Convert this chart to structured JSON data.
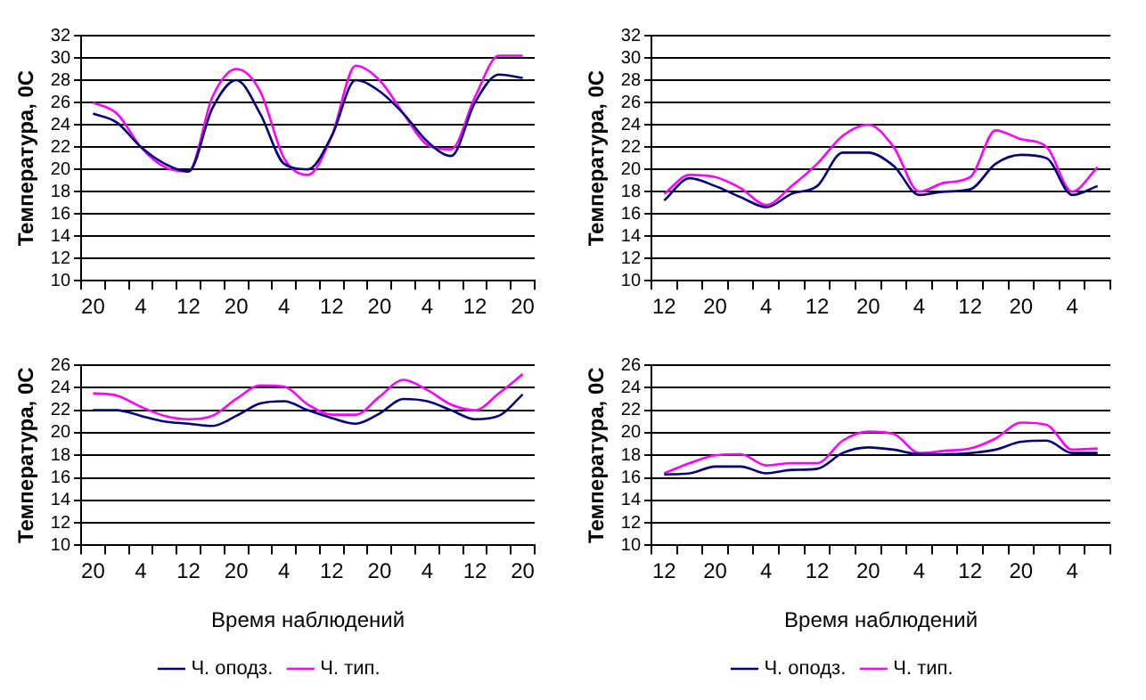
{
  "chart_data": [
    {
      "type": "line",
      "categories": [
        "20",
        null,
        "4",
        null,
        "12",
        null,
        "20",
        null,
        "4",
        null,
        "12",
        null,
        "20",
        null,
        "4",
        null,
        "12",
        null,
        "20"
      ],
      "ylabel": "Температура, 0С",
      "ylim": [
        10,
        32
      ],
      "yticks": [
        10,
        12,
        14,
        16,
        18,
        20,
        22,
        24,
        26,
        28,
        30,
        32
      ],
      "grid": "y",
      "legend": false,
      "marker": "none",
      "series": [
        {
          "color": "#000080",
          "values": [
            25,
            24.2,
            22,
            20.5,
            19.8,
            25.5,
            28,
            25,
            20.5,
            20,
            23,
            28,
            27,
            25,
            22.5,
            21.2,
            26,
            28.5,
            28.2
          ]
        },
        {
          "color": "#ff00ff",
          "values": [
            26,
            25,
            22,
            20.2,
            19.8,
            26.5,
            29,
            27,
            21,
            19.5,
            23,
            29.3,
            28,
            25,
            22.2,
            21.8,
            26.5,
            30.2,
            30.2
          ]
        }
      ]
    },
    {
      "type": "line",
      "categories": [
        "12",
        null,
        "20",
        null,
        "4",
        null,
        "12",
        null,
        "20",
        null,
        "4",
        null,
        "12",
        null,
        "20",
        null,
        "4",
        null
      ],
      "ylabel": "Температура, 0С",
      "ylim": [
        10,
        32
      ],
      "yticks": [
        10,
        12,
        14,
        16,
        18,
        20,
        22,
        24,
        26,
        28,
        30,
        32
      ],
      "grid": "y",
      "legend": false,
      "marker": "none",
      "series": [
        {
          "color": "#000080",
          "values": [
            17.2,
            19.2,
            18.5,
            17.5,
            16.6,
            17.8,
            18.5,
            21.5,
            21.5,
            20.3,
            17.7,
            18,
            18.2,
            20.5,
            21.3,
            21,
            17.7,
            18.5
          ]
        },
        {
          "color": "#ff00ff",
          "values": [
            17.8,
            19.5,
            19.3,
            18.3,
            16.8,
            18.5,
            20.5,
            23,
            24,
            22,
            18,
            18.8,
            19.3,
            23.5,
            22.7,
            22,
            18,
            20.2
          ]
        }
      ]
    },
    {
      "type": "line",
      "categories": [
        "20",
        null,
        "4",
        null,
        "12",
        null,
        "20",
        null,
        "4",
        null,
        "12",
        null,
        "20",
        null,
        "4",
        null,
        "12",
        null,
        "20"
      ],
      "xlabel": "Время наблюдений",
      "ylabel": "Температура, 0С",
      "ylim": [
        10,
        26
      ],
      "yticks": [
        10,
        12,
        14,
        16,
        18,
        20,
        22,
        24,
        26
      ],
      "grid": "y",
      "legend": "bottom",
      "marker": "none",
      "series": [
        {
          "name": "Ч. оподз.",
          "color": "#000080",
          "values": [
            22,
            22,
            21.5,
            21,
            20.8,
            20.6,
            21.5,
            22.6,
            22.8,
            22,
            21.3,
            20.8,
            21.7,
            23,
            22.8,
            22,
            21.2,
            21.5,
            23.4
          ]
        },
        {
          "name": "Ч. тип.",
          "color": "#ff00ff",
          "values": [
            23.5,
            23.3,
            22.3,
            21.5,
            21.2,
            21.5,
            23,
            24.2,
            24.1,
            22.5,
            21.6,
            21.6,
            23.2,
            24.7,
            23.8,
            22.5,
            22,
            23.5,
            25.2
          ]
        }
      ]
    },
    {
      "type": "line",
      "categories": [
        "12",
        null,
        "20",
        null,
        "4",
        null,
        "12",
        null,
        "20",
        null,
        "4",
        null,
        "12",
        null,
        "20",
        null,
        "4",
        null
      ],
      "xlabel": "Время наблюдений",
      "ylabel": "Температура, 0С",
      "ylim": [
        10,
        26
      ],
      "yticks": [
        10,
        12,
        14,
        16,
        18,
        20,
        22,
        24,
        26
      ],
      "grid": "y",
      "legend": "bottom",
      "marker": "none",
      "series": [
        {
          "name": "Ч. оподз.",
          "color": "#000080",
          "values": [
            16.3,
            16.4,
            17,
            17,
            16.4,
            16.7,
            16.8,
            18.2,
            18.7,
            18.5,
            18.1,
            18.1,
            18.2,
            18.5,
            19.2,
            19.3,
            18.2,
            18.2
          ]
        },
        {
          "name": "Ч. тип.",
          "color": "#ff00ff",
          "values": [
            16.4,
            17.3,
            18,
            18.1,
            17.1,
            17.3,
            17.3,
            19.3,
            20.1,
            19.9,
            18.2,
            18.4,
            18.6,
            19.5,
            20.9,
            20.7,
            18.5,
            18.6
          ]
        }
      ]
    }
  ]
}
